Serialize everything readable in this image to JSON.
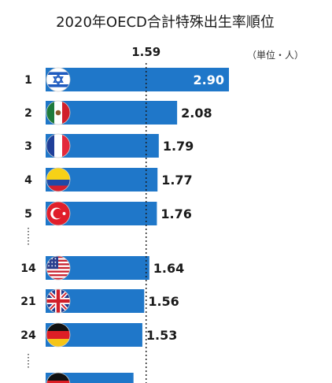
{
  "title": "2020年OECD合計特殊出生率順位",
  "unit": "（単位・人）",
  "colors": {
    "bar": "#1f77c9",
    "bar_dark": "#1764ad",
    "reference_line": "#1a1a1a"
  },
  "chart_data": {
    "type": "bar",
    "orientation": "horizontal",
    "title": "2020年OECD合計特殊出生率順位",
    "unit": "（単位・人）",
    "reference_value": 1.59,
    "reference_label": "1.59",
    "xlim": [
      0,
      2.9
    ],
    "grid": false,
    "bars": [
      {
        "rank": "1",
        "flag": "israel-flag",
        "value": 2.9,
        "label": "2.90"
      },
      {
        "rank": "2",
        "flag": "mexico-flag",
        "value": 2.08,
        "label": "2.08"
      },
      {
        "rank": "3",
        "flag": "france-flag",
        "value": 1.79,
        "label": "1.79"
      },
      {
        "rank": "4",
        "flag": "colombia-flag",
        "value": 1.77,
        "label": "1.77"
      },
      {
        "rank": "5",
        "flag": "turkey-flag",
        "value": 1.76,
        "label": "1.76"
      },
      {
        "rank": "14",
        "flag": "usa-flag",
        "value": 1.64,
        "label": "1.64"
      },
      {
        "rank": "21",
        "flag": "uk-flag",
        "value": 1.56,
        "label": "1.56"
      },
      {
        "rank": "24",
        "flag": "germany-flag",
        "value": 1.53,
        "label": "1.53"
      },
      {
        "rank": "",
        "flag": "germany-flag",
        "value": 1.39,
        "label": ""
      }
    ]
  }
}
